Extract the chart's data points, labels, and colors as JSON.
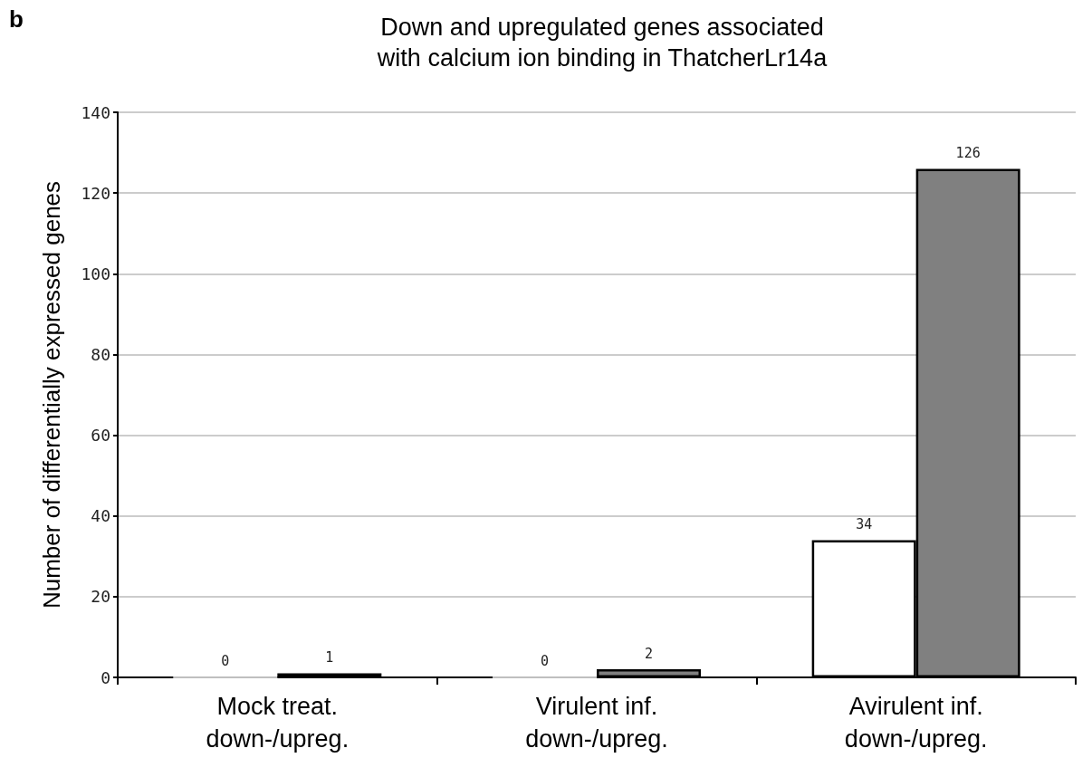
{
  "chart_data": {
    "type": "bar",
    "title": "Down and upregulated genes associated\nwith calcium ion binding in ThatcherLr14a",
    "ylabel": "Number of differentially expressed genes",
    "annotations": [
      "b"
    ],
    "categories": [
      "Mock treat.\ndown-/upreg.",
      "Virulent inf.\ndown-/upreg.",
      "Avirulent inf.\ndown-/upreg."
    ],
    "series": [
      {
        "color": "#ffffff",
        "values": [
          0,
          0,
          34
        ]
      },
      {
        "color": "#808080",
        "values": [
          1,
          2,
          126
        ]
      }
    ],
    "ylim": [
      0,
      140
    ],
    "yticks": [
      0,
      20,
      40,
      60,
      80,
      100,
      120,
      140
    ],
    "grid": "y",
    "data_labels": true
  }
}
